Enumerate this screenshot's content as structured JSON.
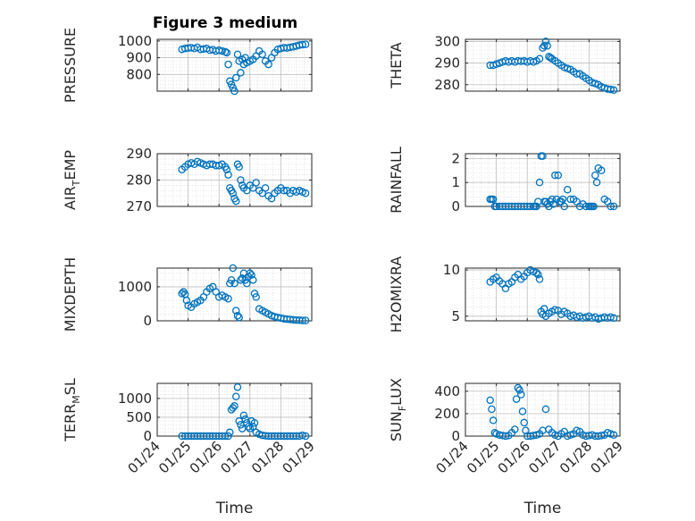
{
  "figure": {
    "title": "Figure 3 medium",
    "marker_color": "#0072BD"
  },
  "chart_data": [
    {
      "type": "scatter",
      "id": "pressure",
      "title": "Figure 3 medium",
      "ylabel": "PRESSURE",
      "xlabel": "",
      "ylim": [
        700,
        1010
      ],
      "yticks": [
        800,
        900,
        1000
      ],
      "xlim": [
        0,
        5
      ],
      "grid": true,
      "x": [
        0.8,
        0.9,
        1.0,
        1.1,
        1.2,
        1.3,
        1.4,
        1.5,
        1.6,
        1.7,
        1.8,
        1.9,
        2.0,
        2.1,
        2.2,
        2.25,
        2.3,
        2.35,
        2.4,
        2.45,
        2.5,
        2.55,
        2.6,
        2.65,
        2.7,
        2.75,
        2.8,
        2.85,
        2.9,
        3.0,
        3.1,
        3.2,
        3.3,
        3.4,
        3.5,
        3.6,
        3.7,
        3.8,
        3.9,
        4.0,
        4.1,
        4.2,
        4.3,
        4.4,
        4.5,
        4.6,
        4.7,
        4.8
      ],
      "y": [
        950,
        955,
        958,
        960,
        955,
        962,
        950,
        952,
        955,
        945,
        948,
        940,
        945,
        940,
        935,
        930,
        860,
        760,
        740,
        720,
        700,
        780,
        920,
        880,
        810,
        890,
        860,
        900,
        870,
        880,
        890,
        910,
        940,
        920,
        880,
        860,
        900,
        930,
        950,
        955,
        960,
        958,
        962,
        965,
        970,
        975,
        978,
        980
      ]
    },
    {
      "type": "scatter",
      "id": "theta",
      "ylabel": "THETA",
      "xlabel": "",
      "ylim": [
        277,
        301
      ],
      "yticks": [
        280,
        290,
        300
      ],
      "xlim": [
        0,
        5
      ],
      "grid": true,
      "x": [
        0.8,
        0.9,
        1.0,
        1.1,
        1.2,
        1.3,
        1.4,
        1.5,
        1.6,
        1.7,
        1.8,
        1.9,
        2.0,
        2.1,
        2.2,
        2.3,
        2.4,
        2.5,
        2.55,
        2.6,
        2.65,
        2.7,
        2.75,
        2.8,
        2.9,
        3.0,
        3.1,
        3.2,
        3.3,
        3.4,
        3.5,
        3.6,
        3.7,
        3.8,
        3.9,
        4.0,
        4.1,
        4.2,
        4.3,
        4.4,
        4.5,
        4.6,
        4.7,
        4.8
      ],
      "y": [
        289,
        289,
        289.5,
        290,
        290.5,
        291,
        290.5,
        291,
        290.5,
        291,
        290.8,
        291,
        290.5,
        291,
        290.5,
        291,
        292,
        297,
        298,
        300,
        298,
        293,
        292.5,
        292,
        291,
        290,
        289,
        288,
        287.5,
        287,
        286,
        285,
        285,
        284,
        283,
        282,
        281,
        280.5,
        280,
        279,
        278.5,
        278,
        277.8,
        277.5
      ]
    },
    {
      "type": "scatter",
      "id": "air_temp",
      "ylabel": "AIR",
      "ylabel_sub": "T",
      "ylabel_tail": "EMP",
      "xlabel": "",
      "ylim": [
        270,
        290
      ],
      "yticks": [
        270,
        280,
        290
      ],
      "xlim": [
        0,
        5
      ],
      "grid": true,
      "x": [
        0.8,
        0.9,
        1.0,
        1.1,
        1.2,
        1.3,
        1.4,
        1.5,
        1.6,
        1.7,
        1.8,
        1.9,
        2.0,
        2.1,
        2.2,
        2.25,
        2.3,
        2.35,
        2.4,
        2.45,
        2.5,
        2.55,
        2.6,
        2.65,
        2.7,
        2.75,
        2.8,
        2.9,
        3.0,
        3.1,
        3.2,
        3.3,
        3.4,
        3.5,
        3.6,
        3.7,
        3.8,
        3.9,
        4.0,
        4.1,
        4.2,
        4.3,
        4.4,
        4.5,
        4.6,
        4.7,
        4.8
      ],
      "y": [
        284,
        285,
        286,
        286.5,
        286,
        287,
        286.5,
        286,
        285.5,
        286,
        286,
        285.5,
        285.5,
        286,
        285,
        284,
        282,
        277,
        276,
        275,
        273,
        272,
        286,
        285,
        280,
        278,
        277,
        276,
        278,
        277,
        279,
        276,
        275,
        277,
        274,
        273,
        275,
        276,
        277,
        276,
        276,
        275,
        276,
        275.5,
        276,
        275.5,
        275
      ]
    },
    {
      "type": "scatter",
      "id": "rainfall",
      "ylabel": "RAINFALL",
      "xlabel": "",
      "ylim": [
        0,
        2.2
      ],
      "yticks": [
        0,
        1,
        2
      ],
      "xlim": [
        0,
        5
      ],
      "grid": true,
      "x": [
        0.8,
        0.85,
        0.9,
        0.95,
        1.0,
        1.1,
        1.2,
        1.3,
        1.4,
        1.5,
        1.6,
        1.7,
        1.8,
        1.9,
        2.0,
        2.1,
        2.2,
        2.25,
        2.3,
        2.35,
        2.4,
        2.45,
        2.5,
        2.55,
        2.6,
        2.65,
        2.7,
        2.75,
        2.8,
        2.85,
        2.9,
        2.95,
        3.0,
        3.05,
        3.1,
        3.15,
        3.2,
        3.3,
        3.4,
        3.5,
        3.6,
        3.7,
        3.8,
        3.9,
        4.0,
        4.05,
        4.1,
        4.15,
        4.2,
        4.25,
        4.3,
        4.4,
        4.5,
        4.6,
        4.7,
        4.8
      ],
      "y": [
        0.3,
        0.3,
        0.3,
        0,
        0,
        0,
        0,
        0,
        0,
        0,
        0,
        0,
        0,
        0,
        0,
        0,
        0,
        0,
        0,
        0.2,
        1.0,
        2.1,
        2.1,
        0.2,
        0.2,
        0.1,
        0,
        0.2,
        0.3,
        0.1,
        1.3,
        0.3,
        1.3,
        0.2,
        0.2,
        0.3,
        0,
        0.7,
        0.3,
        0.3,
        0.2,
        0,
        0.1,
        0,
        0,
        0,
        0,
        0,
        1.3,
        1.0,
        1.6,
        1.5,
        0.3,
        0.2,
        0,
        0
      ]
    },
    {
      "type": "scatter",
      "id": "mixdepth",
      "ylabel": "MIXDEPTH",
      "xlabel": "",
      "ylim": [
        0,
        1550
      ],
      "yticks": [
        0,
        1000
      ],
      "xlim": [
        0,
        5
      ],
      "grid": true,
      "x": [
        0.8,
        0.85,
        0.9,
        0.95,
        1.0,
        1.1,
        1.2,
        1.3,
        1.4,
        1.5,
        1.6,
        1.7,
        1.8,
        1.9,
        2.0,
        2.1,
        2.2,
        2.3,
        2.35,
        2.4,
        2.45,
        2.5,
        2.55,
        2.6,
        2.65,
        2.7,
        2.75,
        2.8,
        2.85,
        2.9,
        2.95,
        3.0,
        3.05,
        3.1,
        3.15,
        3.2,
        3.3,
        3.4,
        3.5,
        3.6,
        3.7,
        3.8,
        3.9,
        4.0,
        4.1,
        4.2,
        4.3,
        4.4,
        4.5,
        4.6,
        4.7,
        4.8
      ],
      "y": [
        800,
        850,
        780,
        600,
        450,
        400,
        500,
        550,
        600,
        700,
        850,
        950,
        1000,
        850,
        700,
        750,
        700,
        650,
        1100,
        1200,
        1550,
        1100,
        300,
        150,
        100,
        1200,
        1250,
        1400,
        1200,
        1100,
        1300,
        1400,
        1350,
        1200,
        800,
        700,
        350,
        300,
        250,
        200,
        150,
        120,
        100,
        80,
        60,
        50,
        40,
        30,
        20,
        20,
        10,
        10
      ]
    },
    {
      "type": "scatter",
      "id": "h2omixra",
      "ylabel": "H2OMIXRA",
      "xlabel": "",
      "ylim": [
        4.5,
        10.2
      ],
      "yticks": [
        5,
        10
      ],
      "xlim": [
        0,
        5
      ],
      "grid": true,
      "x": [
        0.8,
        0.9,
        1.0,
        1.1,
        1.2,
        1.3,
        1.4,
        1.5,
        1.6,
        1.7,
        1.8,
        1.9,
        2.0,
        2.1,
        2.2,
        2.3,
        2.35,
        2.4,
        2.45,
        2.5,
        2.55,
        2.6,
        2.7,
        2.8,
        2.9,
        3.0,
        3.1,
        3.2,
        3.3,
        3.4,
        3.5,
        3.6,
        3.7,
        3.8,
        3.9,
        4.0,
        4.1,
        4.2,
        4.3,
        4.4,
        4.5,
        4.6,
        4.7,
        4.8
      ],
      "y": [
        8.7,
        9.0,
        9.2,
        8.8,
        8.5,
        8.0,
        8.5,
        8.7,
        9.2,
        9.5,
        9.0,
        9.3,
        9.7,
        10.0,
        9.8,
        9.7,
        9.5,
        9.0,
        5.5,
        5.2,
        5.8,
        5.0,
        5.3,
        5.5,
        5.7,
        5.6,
        5.2,
        5.5,
        5.3,
        5.0,
        5.1,
        4.9,
        5.0,
        4.8,
        4.9,
        5.0,
        4.8,
        4.9,
        4.7,
        4.8,
        4.9,
        4.8,
        4.9,
        4.8
      ]
    },
    {
      "type": "scatter",
      "id": "terr_msl",
      "ylabel": "TERR",
      "ylabel_sub": "M",
      "ylabel_tail": "SL",
      "xlabel": "Time",
      "ylim": [
        0,
        1400
      ],
      "yticks": [
        0,
        500,
        1000
      ],
      "xlim": [
        0,
        5
      ],
      "grid": true,
      "xticks": [
        0,
        1,
        2,
        3,
        4,
        5
      ],
      "xticklabels": [
        "01/24",
        "01/25",
        "01/26",
        "01/27",
        "01/28",
        "01/29"
      ],
      "x": [
        0.8,
        0.9,
        1.0,
        1.1,
        1.2,
        1.3,
        1.4,
        1.5,
        1.6,
        1.7,
        1.8,
        1.9,
        2.0,
        2.1,
        2.2,
        2.3,
        2.35,
        2.4,
        2.45,
        2.5,
        2.55,
        2.6,
        2.65,
        2.7,
        2.75,
        2.8,
        2.85,
        2.9,
        2.95,
        3.0,
        3.05,
        3.1,
        3.15,
        3.2,
        3.3,
        3.4,
        3.5,
        3.6,
        3.7,
        3.8,
        3.9,
        4.0,
        4.1,
        4.2,
        4.3,
        4.4,
        4.5,
        4.6,
        4.7,
        4.8
      ],
      "y": [
        0,
        0,
        0,
        0,
        0,
        0,
        0,
        0,
        0,
        0,
        0,
        0,
        0,
        0,
        0,
        0,
        100,
        700,
        750,
        800,
        1050,
        1300,
        400,
        300,
        200,
        550,
        450,
        350,
        250,
        200,
        400,
        250,
        350,
        100,
        50,
        20,
        10,
        0,
        0,
        0,
        0,
        0,
        0,
        0,
        0,
        0,
        0,
        0,
        20,
        0
      ]
    },
    {
      "type": "scatter",
      "id": "sun_flux",
      "ylabel": "SUN",
      "ylabel_sub": "F",
      "ylabel_tail": "LUX",
      "xlabel": "Time",
      "ylim": [
        0,
        470
      ],
      "yticks": [
        0,
        200,
        400
      ],
      "xlim": [
        0,
        5
      ],
      "grid": true,
      "xticks": [
        0,
        1,
        2,
        3,
        4,
        5
      ],
      "xticklabels": [
        "01/24",
        "01/25",
        "01/26",
        "01/27",
        "01/28",
        "01/29"
      ],
      "x": [
        0.8,
        0.85,
        0.9,
        0.95,
        1.0,
        1.1,
        1.2,
        1.3,
        1.4,
        1.5,
        1.6,
        1.65,
        1.7,
        1.75,
        1.8,
        1.85,
        1.9,
        1.95,
        2.0,
        2.1,
        2.2,
        2.3,
        2.4,
        2.5,
        2.6,
        2.7,
        2.8,
        2.9,
        3.0,
        3.1,
        3.2,
        3.3,
        3.4,
        3.5,
        3.6,
        3.7,
        3.8,
        3.9,
        4.0,
        4.1,
        4.2,
        4.3,
        4.4,
        4.5,
        4.6,
        4.7,
        4.8
      ],
      "y": [
        320,
        240,
        140,
        30,
        20,
        10,
        5,
        0,
        5,
        30,
        60,
        330,
        430,
        410,
        370,
        220,
        120,
        50,
        0,
        0,
        5,
        10,
        20,
        50,
        240,
        60,
        30,
        10,
        0,
        20,
        40,
        0,
        10,
        20,
        50,
        40,
        10,
        0,
        5,
        10,
        0,
        0,
        5,
        10,
        30,
        20,
        10
      ]
    }
  ]
}
